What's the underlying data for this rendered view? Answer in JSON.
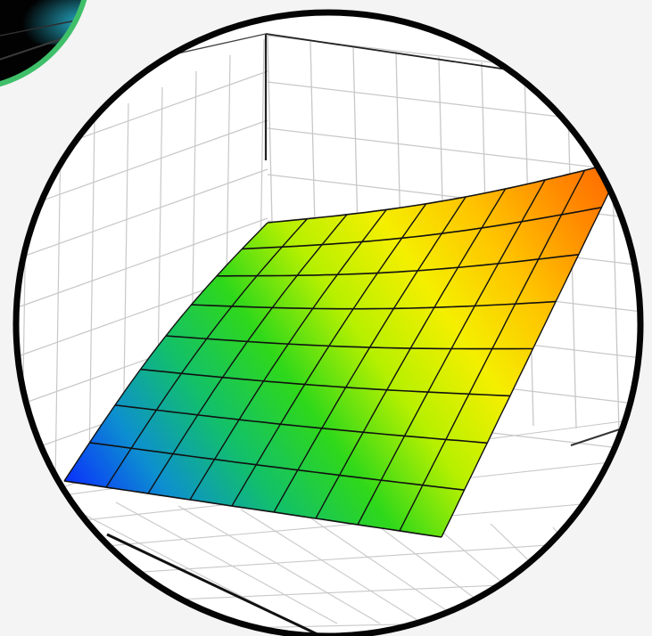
{
  "colors": {
    "background": "#f4f4f4",
    "lens_border": "#050505",
    "lens_fill": "#ffffff",
    "grid_line": "#c8c8c8",
    "axis_line": "#111111",
    "mesh_line": "#111111",
    "corner_badge_border": "#3fbf6a",
    "corner_badge_fill": "#020202",
    "corner_badge_glow": "#29c7e6",
    "surface_gradient": [
      "#0a2bff",
      "#0d8fd0",
      "#12c06a",
      "#2fd81a",
      "#b6f000",
      "#f4ef00",
      "#ffc400",
      "#ff8a00",
      "#ff5a00"
    ]
  },
  "icons": {
    "badge": "corner-badge-icon",
    "magnifier": "magnifier-lens-icon",
    "surface": "response-surface-icon"
  }
}
